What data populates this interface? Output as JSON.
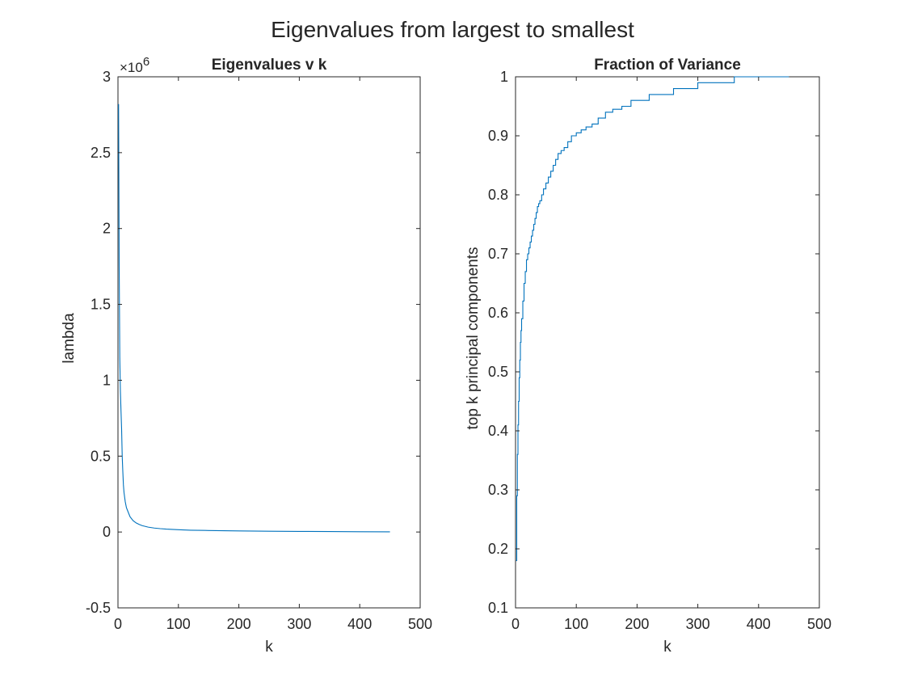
{
  "suptitle": "Eigenvalues from largest to smallest",
  "colors": {
    "axes": "#262626",
    "series": "#0072bd",
    "background": "#ffffff"
  },
  "chart_data": [
    {
      "type": "line",
      "title": "Eigenvalues v k",
      "xlabel": "k",
      "ylabel": "lambda",
      "xlim": [
        0,
        500
      ],
      "ylim": [
        -0.5,
        3
      ],
      "y_multiplier": "×10",
      "y_multiplier_exponent": "6",
      "xticks": [
        0,
        100,
        200,
        300,
        400,
        500
      ],
      "xtick_labels": [
        "0",
        "100",
        "200",
        "300",
        "400",
        "500"
      ],
      "yticks": [
        -0.5,
        0,
        0.5,
        1,
        1.5,
        2,
        2.5,
        3
      ],
      "ytick_labels": [
        "-0.5",
        "0",
        "0.5",
        "1",
        "1.5",
        "2",
        "2.5",
        "3"
      ],
      "grid": false,
      "step": false,
      "series": [
        {
          "x": [
            1,
            2,
            3,
            4,
            5,
            6,
            7,
            8,
            9,
            10,
            12,
            14,
            16,
            18,
            20,
            25,
            30,
            35,
            40,
            50,
            60,
            70,
            80,
            100,
            120,
            150,
            200,
            250,
            300,
            350,
            400,
            450
          ],
          "y": [
            2.82,
            1.75,
            1.15,
            0.93,
            0.8,
            0.68,
            0.5,
            0.4,
            0.31,
            0.26,
            0.2,
            0.16,
            0.14,
            0.12,
            0.1,
            0.075,
            0.06,
            0.05,
            0.042,
            0.032,
            0.026,
            0.022,
            0.019,
            0.015,
            0.012,
            0.01,
            0.007,
            0.005,
            0.004,
            0.003,
            0.002,
            0.001
          ]
        }
      ]
    },
    {
      "type": "line",
      "title": "Fraction of Variance",
      "xlabel": "k",
      "ylabel": "top k principal components",
      "xlim": [
        0,
        500
      ],
      "ylim": [
        0.1,
        1
      ],
      "xticks": [
        0,
        100,
        200,
        300,
        400,
        500
      ],
      "xtick_labels": [
        "0",
        "100",
        "200",
        "300",
        "400",
        "500"
      ],
      "yticks": [
        0.1,
        0.2,
        0.3,
        0.4,
        0.5,
        0.6,
        0.7,
        0.8,
        0.9,
        1
      ],
      "ytick_labels": [
        "0.1",
        "0.2",
        "0.3",
        "0.4",
        "0.5",
        "0.6",
        "0.7",
        "0.8",
        "0.9",
        "1"
      ],
      "grid": false,
      "step": true,
      "series": [
        {
          "x": [
            1,
            2,
            3,
            4,
            5,
            6,
            7,
            8,
            9,
            10,
            12,
            14,
            16,
            18,
            20,
            22,
            24,
            26,
            28,
            30,
            32,
            34,
            36,
            38,
            40,
            43,
            46,
            50,
            54,
            58,
            62,
            66,
            70,
            75,
            80,
            86,
            92,
            100,
            108,
            116,
            126,
            136,
            148,
            160,
            175,
            190,
            220,
            260,
            300,
            360,
            450
          ],
          "y": [
            0.18,
            0.29,
            0.36,
            0.41,
            0.45,
            0.49,
            0.52,
            0.55,
            0.57,
            0.59,
            0.62,
            0.65,
            0.67,
            0.69,
            0.7,
            0.71,
            0.72,
            0.73,
            0.74,
            0.75,
            0.76,
            0.77,
            0.78,
            0.785,
            0.79,
            0.8,
            0.81,
            0.82,
            0.83,
            0.84,
            0.85,
            0.86,
            0.87,
            0.875,
            0.88,
            0.89,
            0.9,
            0.905,
            0.91,
            0.915,
            0.92,
            0.93,
            0.94,
            0.945,
            0.95,
            0.96,
            0.97,
            0.98,
            0.99,
            1.0,
            1.0
          ]
        }
      ]
    }
  ]
}
